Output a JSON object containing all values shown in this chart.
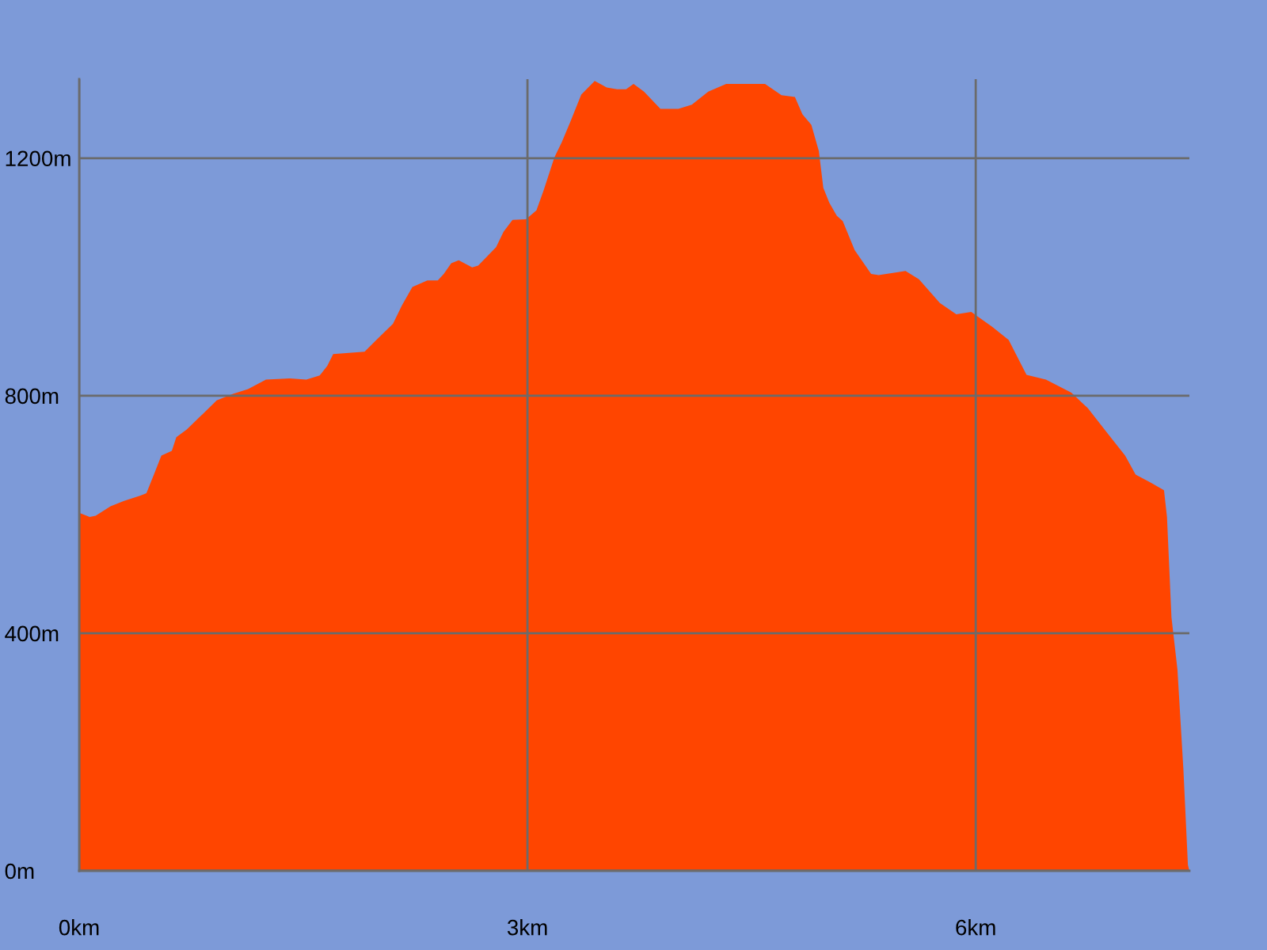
{
  "chart_data": {
    "type": "area",
    "color": "#ff4500",
    "x": [
      0,
      0.07,
      0.11,
      0.21,
      0.3,
      0.41,
      0.45,
      0.5,
      0.55,
      0.62,
      0.65,
      0.72,
      0.81,
      0.92,
      1.03,
      1.13,
      1.25,
      1.41,
      1.52,
      1.61,
      1.66,
      1.7,
      1.91,
      2.01,
      2.1,
      2.16,
      2.23,
      2.33,
      2.4,
      2.44,
      2.49,
      2.54,
      2.63,
      2.67,
      2.79,
      2.84,
      2.9,
      2.99,
      3.06,
      3.11,
      3.18,
      3.23,
      3.29,
      3.36,
      3.45,
      3.53,
      3.6,
      3.66,
      3.71,
      3.78,
      3.89,
      4.01,
      4.1,
      4.21,
      4.33,
      4.59,
      4.7,
      4.79,
      4.84,
      4.9,
      4.95,
      4.98,
      5.02,
      5.07,
      5.11,
      5.19,
      5.3,
      5.35,
      5.48,
      5.53,
      5.62,
      5.76,
      5.87,
      5.97,
      6.11,
      6.22,
      6.34,
      6.47,
      6.64,
      6.75,
      6.89,
      7.0,
      7.07,
      7.17,
      7.26,
      7.28,
      7.31,
      7.35,
      7.39,
      7.42,
      7.43
    ],
    "values": [
      603,
      596,
      598,
      614,
      623,
      632,
      636,
      667,
      699,
      707,
      730,
      743,
      765,
      792,
      803,
      811,
      827,
      829,
      827,
      834,
      850,
      870,
      874,
      899,
      921,
      952,
      983,
      994,
      994,
      1005,
      1023,
      1028,
      1016,
      1019,
      1050,
      1076,
      1096,
      1097,
      1112,
      1147,
      1201,
      1227,
      1263,
      1307,
      1330,
      1319,
      1316,
      1316,
      1325,
      1312,
      1283,
      1283,
      1290,
      1312,
      1325,
      1325,
      1306,
      1303,
      1274,
      1256,
      1212,
      1150,
      1125,
      1103,
      1094,
      1045,
      1005,
      1003,
      1008,
      1010,
      996,
      956,
      937,
      941,
      916,
      894,
      835,
      827,
      805,
      779,
      734,
      699,
      667,
      654,
      641,
      596,
      427,
      339,
      170,
      10,
      0
    ],
    "xlim": [
      0,
      7.43
    ],
    "ylim": [
      0,
      1333
    ],
    "xticks": [
      {
        "value": 0,
        "label": "0km"
      },
      {
        "value": 3,
        "label": "3km"
      },
      {
        "value": 6,
        "label": "6km"
      }
    ],
    "yticks": [
      {
        "value": 0,
        "label": "0m"
      },
      {
        "value": 400,
        "label": "400m"
      },
      {
        "value": 800,
        "label": "800m"
      },
      {
        "value": 1200,
        "label": "1200m"
      }
    ],
    "grid": true
  }
}
